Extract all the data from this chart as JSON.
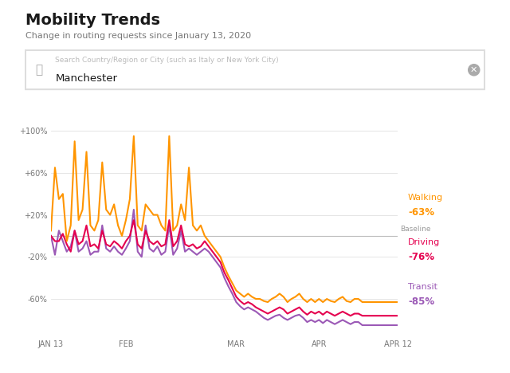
{
  "title": "Mobility Trends",
  "subtitle": "Change in routing requests since January 13, 2020",
  "search_placeholder": "Search Country/Region or City (such as Italy or New York City)",
  "search_text": "Manchester",
  "baseline_label": "Baseline",
  "legend": [
    {
      "label": "Walking",
      "value": "-63%",
      "color": "#FF9500"
    },
    {
      "label": "Driving",
      "value": "-76%",
      "color": "#E5004F"
    },
    {
      "label": "Transit",
      "value": "-85%",
      "color": "#9B59B6"
    }
  ],
  "x_tick_labels": [
    "JAN 13",
    "FEB",
    "MAR",
    "APR",
    "APR 12"
  ],
  "y_tick_labels": [
    "+100%",
    "+60%",
    "+20%",
    "-20%",
    "-60%"
  ],
  "y_tick_values": [
    100,
    60,
    20,
    -20,
    -60
  ],
  "background_color": "#FFFFFF",
  "plot_bg_color": "#FFFFFF",
  "grid_color": "#E0E0E0",
  "baseline_color": "#BBBBBB",
  "walking": [
    5,
    65,
    35,
    40,
    -5,
    10,
    90,
    15,
    25,
    80,
    10,
    5,
    15,
    70,
    25,
    20,
    30,
    10,
    0,
    15,
    35,
    95,
    10,
    5,
    30,
    25,
    20,
    20,
    10,
    5,
    95,
    5,
    10,
    30,
    15,
    65,
    10,
    5,
    10,
    0,
    -5,
    -10,
    -15,
    -20,
    -30,
    -38,
    -45,
    -52,
    -55,
    -58,
    -55,
    -58,
    -60,
    -60,
    -62,
    -63,
    -60,
    -58,
    -55,
    -58,
    -63,
    -60,
    -58,
    -55,
    -60,
    -63,
    -60,
    -63,
    -60,
    -63,
    -60,
    -62,
    -63,
    -60,
    -58,
    -62,
    -63,
    -60,
    -60,
    -63,
    -63,
    -63,
    -63,
    -63,
    -63,
    -63,
    -63,
    -63,
    -63
  ],
  "driving": [
    0,
    -5,
    -5,
    2,
    -8,
    -15,
    5,
    -8,
    -5,
    10,
    -10,
    -8,
    -12,
    5,
    -8,
    -10,
    -5,
    -8,
    -12,
    -5,
    0,
    15,
    -8,
    -12,
    5,
    -5,
    -8,
    -5,
    -10,
    -8,
    15,
    -10,
    -5,
    10,
    -8,
    -10,
    -8,
    -12,
    -10,
    -5,
    -10,
    -15,
    -20,
    -25,
    -35,
    -42,
    -50,
    -58,
    -62,
    -65,
    -63,
    -65,
    -68,
    -70,
    -72,
    -74,
    -72,
    -70,
    -68,
    -70,
    -74,
    -72,
    -70,
    -68,
    -72,
    -75,
    -72,
    -74,
    -72,
    -75,
    -72,
    -74,
    -76,
    -74,
    -72,
    -74,
    -76,
    -74,
    -74,
    -76,
    -76,
    -76,
    -76,
    -76,
    -76,
    -76,
    -76,
    -76,
    -76
  ],
  "transit": [
    0,
    -18,
    5,
    -5,
    -15,
    -10,
    5,
    -15,
    -12,
    -5,
    -18,
    -15,
    -15,
    10,
    -12,
    -15,
    -10,
    -15,
    -18,
    -12,
    -5,
    25,
    -15,
    -20,
    10,
    -12,
    -15,
    -10,
    -18,
    -15,
    10,
    -18,
    -12,
    5,
    -15,
    -12,
    -15,
    -18,
    -15,
    -12,
    -15,
    -20,
    -25,
    -30,
    -40,
    -48,
    -55,
    -63,
    -67,
    -70,
    -68,
    -70,
    -72,
    -75,
    -78,
    -80,
    -78,
    -76,
    -75,
    -78,
    -80,
    -78,
    -76,
    -75,
    -78,
    -82,
    -80,
    -82,
    -80,
    -83,
    -80,
    -82,
    -84,
    -82,
    -80,
    -82,
    -84,
    -82,
    -82,
    -85,
    -85,
    -85,
    -85,
    -85,
    -85,
    -85,
    -85,
    -85,
    -85
  ],
  "n_points": 89,
  "jan13_idx": 0,
  "feb_idx": 19,
  "mar_idx": 47,
  "apr_idx": 68,
  "apr12_idx": 88
}
